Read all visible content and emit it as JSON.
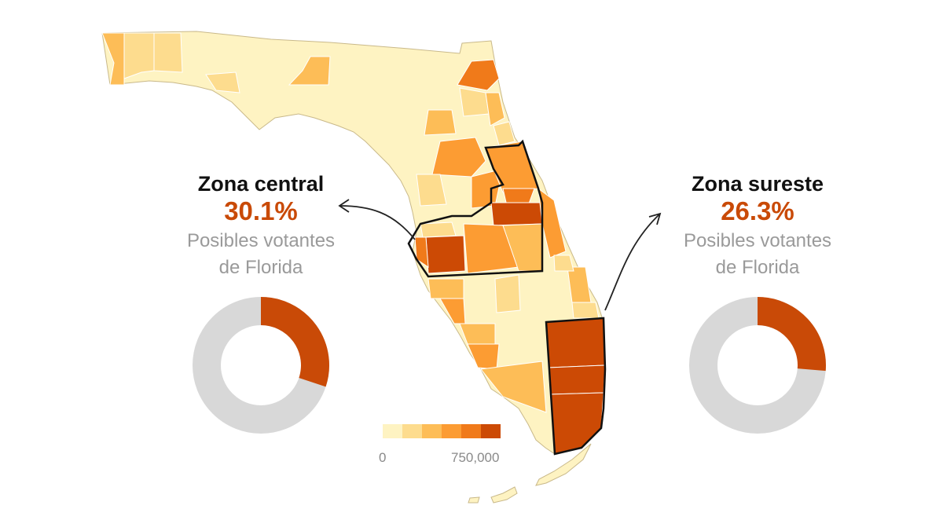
{
  "zones": [
    {
      "id": "central",
      "title": "Zona central",
      "percent_label": "30.1%",
      "percent": 30.1,
      "subtitle_line1": "Posibles votantes",
      "subtitle_line2": "de Florida"
    },
    {
      "id": "sureste",
      "title": "Zona sureste",
      "percent_label": "26.3%",
      "percent": 26.3,
      "subtitle_line1": "Posibles votantes",
      "subtitle_line2": "de Florida"
    }
  ],
  "legend": {
    "min_label": "0",
    "max_label": "750,000",
    "min_value": 0,
    "max_value": 750000,
    "colors": [
      "#fef3c2",
      "#fddc8e",
      "#fdbd57",
      "#fc9c33",
      "#f07a1a",
      "#cc4a05"
    ]
  },
  "colors": {
    "accent": "#c94a07",
    "donut_rest": "#d8d8d8",
    "map_base": "#fef3c2",
    "outline": "#111111"
  }
}
